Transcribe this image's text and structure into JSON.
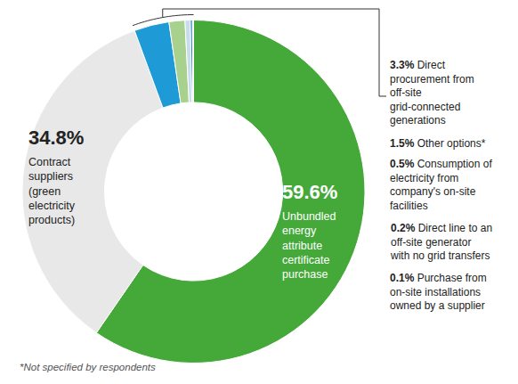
{
  "chart_data": {
    "type": "pie",
    "categories": [
      "Unbundled energy attribute certificate purchase",
      "Contract suppliers (green electricity products)",
      "Direct procurement from off-site grid-connected generations",
      "Other options*",
      "Consumption of electricity from company's on-site facilities",
      "Direct line to an off-site generator with no grid transfers",
      "Purchase from on-site installations owned by a supplier"
    ],
    "values": [
      59.6,
      34.8,
      3.3,
      1.5,
      0.5,
      0.2,
      0.1
    ],
    "value_labels": [
      "59.6%",
      "34.8%",
      "3.3%",
      "1.5%",
      "0.5%",
      "0.2%",
      "0.1%"
    ],
    "colors": [
      "#45a93a",
      "#e8e8e8",
      "#1e9ad6",
      "#a9d18e",
      "#c9dcec",
      "#2b7fc0",
      "#dfe9f3"
    ],
    "data_labels": true,
    "annotations": [
      "*Not specified by respondents"
    ]
  }
}
